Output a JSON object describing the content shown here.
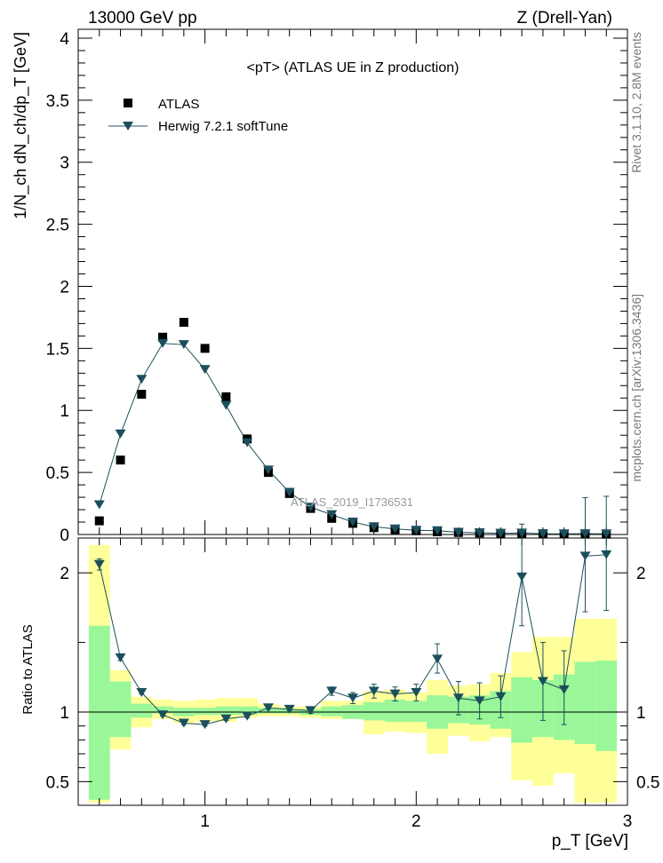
{
  "header": {
    "energy": "13000 GeV pp",
    "process": "Z (Drell-Yan)"
  },
  "side_labels": {
    "rivet": "Rivet 3.1.10, 2.8M events",
    "mcplots": "mcplots.cern.ch [arXiv:1306.3436]"
  },
  "colors": {
    "data_marker": "#000000",
    "mc_line": "#1b4f5c",
    "band_inner": "#99f799",
    "band_outer": "#ffff99",
    "analysis_label": "#999999"
  },
  "chart_data": [
    {
      "type": "scatter",
      "title": "<pT> (ATLAS UE in Z production)",
      "ylabel": "1/N_ch dN_ch/dp_T [GeV]",
      "xlabel": "",
      "xlim": [
        0.4,
        3.0
      ],
      "ylim": [
        0,
        4.05
      ],
      "yticks": [
        0,
        0.5,
        1,
        1.5,
        2,
        2.5,
        3,
        3.5,
        4
      ],
      "ytick_labels": [
        "0",
        "0.5",
        "1",
        "1.5",
        "2",
        "2.5",
        "3",
        "3.5",
        "4"
      ],
      "analysis_label": "ATLAS_2019_I1736531",
      "legend": {
        "position": "top-left",
        "entries": [
          "ATLAS",
          "Herwig 7.2.1 softTune"
        ]
      },
      "x": [
        0.5,
        0.6,
        0.7,
        0.8,
        0.9,
        1.0,
        1.1,
        1.2,
        1.3,
        1.4,
        1.5,
        1.6,
        1.7,
        1.8,
        1.9,
        2.0,
        2.1,
        2.2,
        2.3,
        2.4,
        2.5,
        2.6,
        2.7,
        2.8,
        2.9
      ],
      "series": [
        {
          "name": "ATLAS",
          "values": [
            0.11,
            0.6,
            1.13,
            1.59,
            1.71,
            1.5,
            1.11,
            0.77,
            0.5,
            0.33,
            0.21,
            0.13,
            0.09,
            0.055,
            0.04,
            0.03,
            0.022,
            0.016,
            0.012,
            0.009,
            0.006,
            0.005,
            0.004,
            0.003,
            0.0025
          ]
        },
        {
          "name": "Herwig 7.2.1 softTune",
          "values": [
            0.24,
            0.81,
            1.25,
            1.54,
            1.53,
            1.33,
            1.04,
            0.74,
            0.52,
            0.34,
            0.22,
            0.16,
            0.1,
            0.063,
            0.045,
            0.034,
            0.03,
            0.018,
            0.013,
            0.01,
            0.012,
            0.006,
            0.005,
            0.0065,
            0.0055
          ]
        }
      ]
    },
    {
      "type": "scatter",
      "ylabel": "Ratio to ATLAS",
      "xlabel": "p_T [GeV]",
      "xlim": [
        0.4,
        3.0
      ],
      "ylim": [
        0.33,
        2.25
      ],
      "xticks": [
        1,
        2,
        3
      ],
      "xtick_labels": [
        "1",
        "2",
        "3"
      ],
      "yticks": [
        0.5,
        1,
        2
      ],
      "ytick_labels": [
        "0.5",
        "1",
        "2"
      ],
      "bins": [
        0.45,
        0.55,
        0.65,
        0.75,
        0.85,
        0.95,
        1.05,
        1.15,
        1.25,
        1.35,
        1.45,
        1.55,
        1.65,
        1.75,
        1.85,
        1.95,
        2.05,
        2.15,
        2.25,
        2.35,
        2.45,
        2.55,
        2.65,
        2.75,
        2.85,
        2.95
      ],
      "band_inner": {
        "low": [
          0.37,
          0.82,
          0.96,
          0.99,
          0.97,
          0.98,
          0.98,
          0.98,
          0.99,
          0.99,
          0.98,
          0.97,
          0.95,
          0.94,
          0.93,
          0.93,
          0.88,
          0.92,
          0.91,
          0.88,
          0.78,
          0.82,
          0.8,
          0.77,
          0.72
        ],
        "high": [
          1.62,
          1.22,
          1.06,
          1.04,
          1.03,
          1.03,
          1.04,
          1.04,
          1.03,
          1.02,
          1.02,
          1.04,
          1.05,
          1.07,
          1.09,
          1.08,
          1.12,
          1.11,
          1.12,
          1.15,
          1.25,
          1.23,
          1.27,
          1.36,
          1.37
        ]
      },
      "band_outer": {
        "low": [
          0.35,
          0.73,
          0.89,
          0.95,
          0.92,
          0.93,
          0.93,
          0.96,
          0.97,
          0.97,
          0.96,
          0.95,
          0.95,
          0.84,
          0.86,
          0.85,
          0.7,
          0.83,
          0.79,
          0.82,
          0.51,
          0.47,
          0.56,
          0.35,
          0.35
        ],
        "high": [
          2.2,
          1.3,
          1.11,
          1.09,
          1.08,
          1.09,
          1.1,
          1.1,
          1.06,
          1.04,
          1.04,
          1.08,
          1.08,
          1.15,
          1.16,
          1.14,
          1.23,
          1.19,
          1.2,
          1.28,
          1.43,
          1.54,
          1.54,
          1.67,
          1.67
        ]
      },
      "series": [
        {
          "name": "Herwig 7.2.1 softTune / ATLAS",
          "values": [
            2.06,
            1.39,
            1.14,
            0.98,
            0.92,
            0.91,
            0.95,
            0.97,
            1.03,
            1.02,
            1.01,
            1.15,
            1.1,
            1.15,
            1.13,
            1.14,
            1.38,
            1.1,
            1.08,
            1.11,
            1.97,
            1.22,
            1.16,
            2.12,
            2.13
          ],
          "err_low": [
            0.04,
            0.02,
            0.01,
            0.01,
            0.01,
            0.01,
            0.01,
            0.01,
            0.01,
            0.01,
            0.02,
            0.03,
            0.04,
            0.05,
            0.05,
            0.06,
            0.1,
            0.12,
            0.13,
            0.15,
            0.35,
            0.28,
            0.25,
            0.4,
            0.4
          ],
          "err_high": [
            0.04,
            0.02,
            0.01,
            0.01,
            0.01,
            0.01,
            0.01,
            0.01,
            0.01,
            0.01,
            0.02,
            0.03,
            0.04,
            0.05,
            0.05,
            0.06,
            0.11,
            0.12,
            0.13,
            0.15,
            0.38,
            0.28,
            0.28,
            0.42,
            0.42
          ]
        }
      ]
    }
  ]
}
